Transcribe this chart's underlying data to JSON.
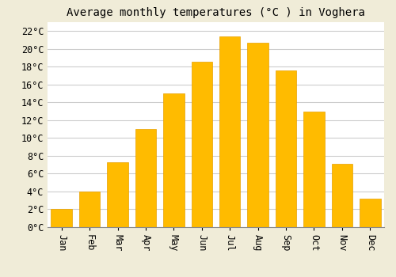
{
  "title": "Average monthly temperatures (°C ) in Voghera",
  "months": [
    "Jan",
    "Feb",
    "Mar",
    "Apr",
    "May",
    "Jun",
    "Jul",
    "Aug",
    "Sep",
    "Oct",
    "Nov",
    "Dec"
  ],
  "values": [
    2.0,
    4.0,
    7.3,
    11.0,
    15.0,
    18.6,
    21.4,
    20.7,
    17.6,
    13.0,
    7.1,
    3.2
  ],
  "bar_color": "#FFBB00",
  "bar_edge_color": "#E8A000",
  "background_color": "#F0ECD8",
  "plot_bg_color": "#FFFFFF",
  "grid_color": "#CCCCCC",
  "ylim": [
    0,
    23
  ],
  "yticks": [
    0,
    2,
    4,
    6,
    8,
    10,
    12,
    14,
    16,
    18,
    20,
    22
  ],
  "title_fontsize": 10,
  "tick_fontsize": 8.5,
  "font_family": "monospace",
  "bar_width": 0.75
}
